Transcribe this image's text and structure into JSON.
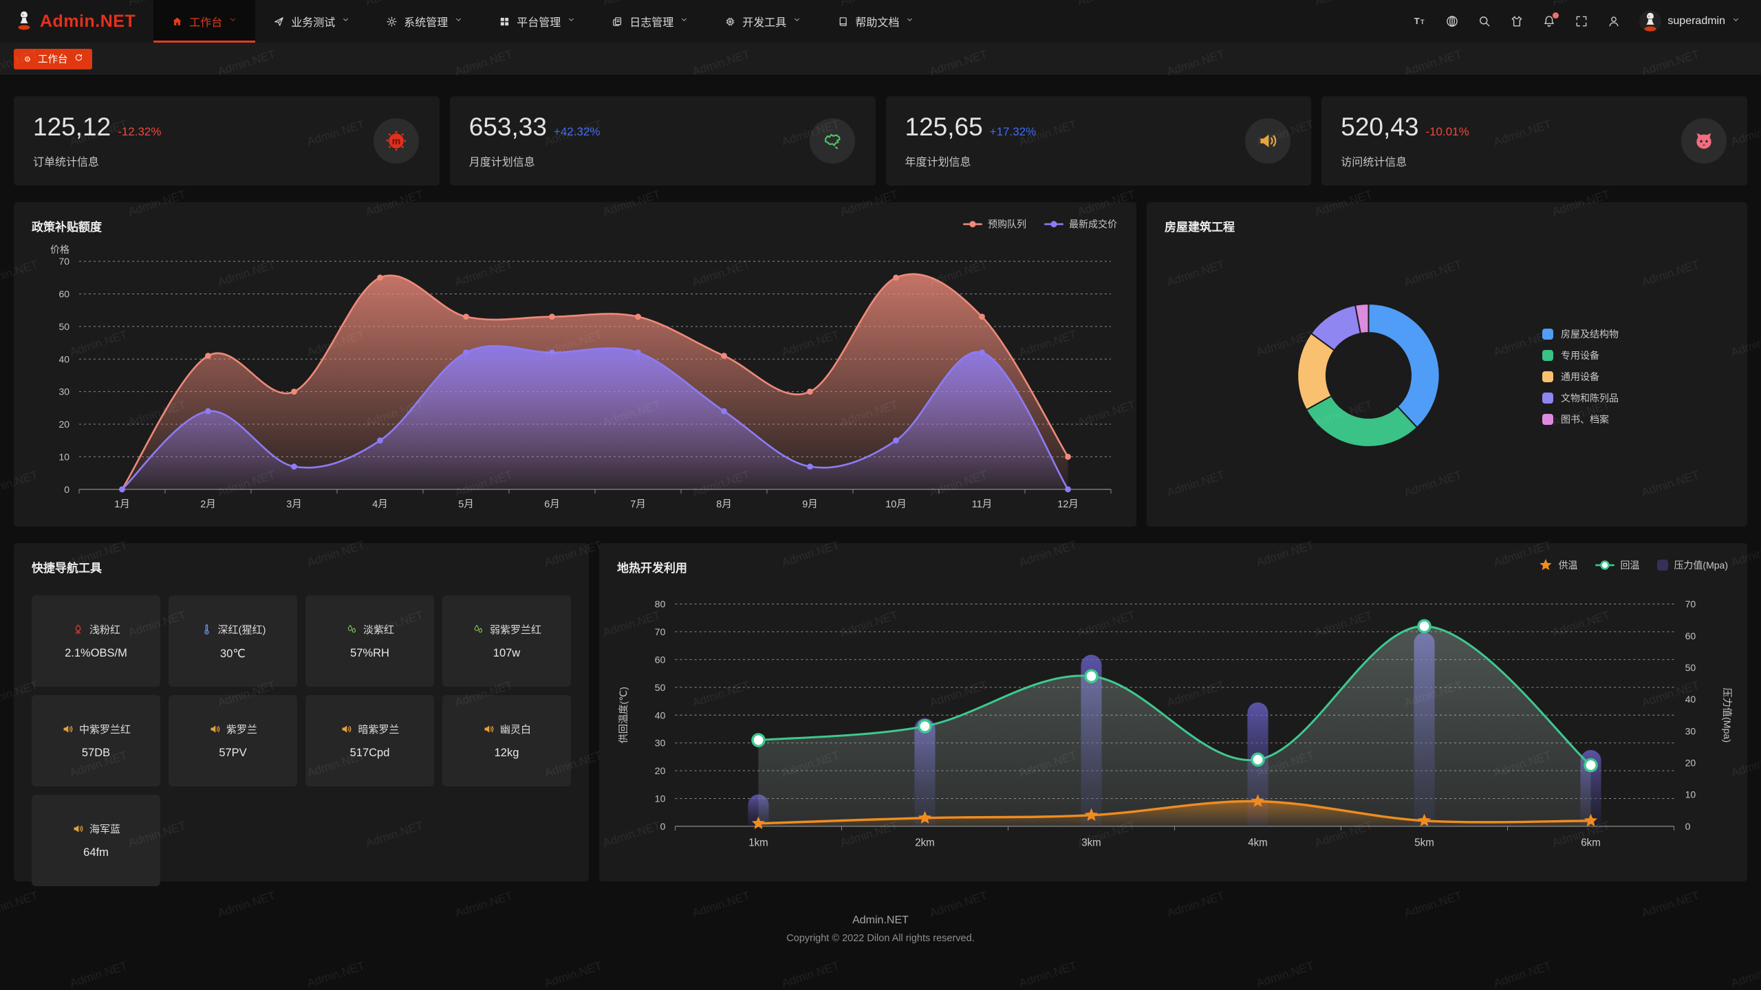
{
  "watermark": {
    "text": "Admin.NET"
  },
  "header": {
    "logo_text": "Admin.NET",
    "menu": [
      {
        "label": "工作台",
        "icon": "home-icon",
        "active": true
      },
      {
        "label": "业务测试",
        "icon": "send-icon",
        "active": false
      },
      {
        "label": "系统管理",
        "icon": "gear-icon",
        "active": false
      },
      {
        "label": "平台管理",
        "icon": "grid-icon",
        "active": false
      },
      {
        "label": "日志管理",
        "icon": "log-icon",
        "active": false
      },
      {
        "label": "开发工具",
        "icon": "chip-icon",
        "active": false
      },
      {
        "label": "帮助文档",
        "icon": "book-icon",
        "active": false
      }
    ],
    "actions": [
      {
        "icon": "font-size-icon",
        "badge": false
      },
      {
        "icon": "language-icon",
        "badge": false
      },
      {
        "icon": "search-icon",
        "badge": false
      },
      {
        "icon": "theme-shirt-icon",
        "badge": false
      },
      {
        "icon": "bell-icon",
        "badge": true
      },
      {
        "icon": "fullscreen-icon",
        "badge": false
      },
      {
        "icon": "user-icon",
        "badge": false
      }
    ],
    "username": "superadmin"
  },
  "tabbar": {
    "active_tab": "工作台"
  },
  "stats": [
    {
      "value": "125,12",
      "delta": "-12.32%",
      "delta_color": "#f0483c",
      "label": "订单统计信息",
      "icon": "splat-icon",
      "icon_color": "#e0301e"
    },
    {
      "value": "653,33",
      "delta": "+42.32%",
      "delta_color": "#3f6af5",
      "label": "月度计划信息",
      "icon": "china-map-icon",
      "icon_color": "#4ec469"
    },
    {
      "value": "125,65",
      "delta": "+17.32%",
      "delta_color": "#3f6af5",
      "label": "年度计划信息",
      "icon": "speaker-icon",
      "icon_color": "#e6a23c"
    },
    {
      "value": "520,43",
      "delta": "-10.01%",
      "delta_color": "#f0483c",
      "label": "访问统计信息",
      "icon": "cat-icon",
      "icon_color": "#f26d7e"
    }
  ],
  "chart_data": [
    {
      "type": "area-line",
      "title": "政策补贴额度",
      "ylabel": "价格",
      "ymin": 0,
      "ymax": 70,
      "ystep": 10,
      "grid": "dashed",
      "legend_position": "top-right",
      "categories": [
        "1月",
        "2月",
        "3月",
        "4月",
        "5月",
        "6月",
        "7月",
        "8月",
        "9月",
        "10月",
        "11月",
        "12月"
      ],
      "series": [
        {
          "name": "预购队列",
          "color": "#ef8a7a",
          "values": [
            0,
            41,
            30,
            65,
            53,
            53,
            53,
            41,
            30,
            65,
            53,
            10
          ]
        },
        {
          "name": "最新成交价",
          "color": "#8d7cf3",
          "values": [
            0,
            24,
            7,
            15,
            42,
            42,
            42,
            24,
            7,
            15,
            42,
            0
          ]
        }
      ]
    },
    {
      "type": "pie",
      "title": "房屋建筑工程",
      "donut": true,
      "legend_position": "right",
      "slices": [
        {
          "name": "房屋及结构物",
          "value": 38,
          "color": "#4f9df7"
        },
        {
          "name": "专用设备",
          "value": 29,
          "color": "#3ac287"
        },
        {
          "name": "通用设备",
          "value": 18,
          "color": "#f9c06f"
        },
        {
          "name": "文物和陈列品",
          "value": 12,
          "color": "#8f86f2"
        },
        {
          "name": "图书、档案",
          "value": 3,
          "color": "#dd8bdf"
        }
      ]
    },
    {
      "type": "bar-line",
      "title": "地热开发利用",
      "grid": "dashed",
      "legend_position": "top-right",
      "categories": [
        "1km",
        "2km",
        "3km",
        "4km",
        "5km",
        "6km"
      ],
      "left_axis": {
        "label": "供回温度(℃)",
        "min": 0,
        "max": 80,
        "step": 10
      },
      "right_axis": {
        "label": "压力值(Mpa)",
        "min": 0,
        "max": 70,
        "step": 10
      },
      "series": [
        {
          "name": "供温",
          "type": "line",
          "marker": "star",
          "axis": "left",
          "color": "#f08c1f",
          "values": [
            1,
            3,
            4,
            9,
            2,
            2
          ]
        },
        {
          "name": "回温",
          "type": "line",
          "marker": "circle",
          "axis": "left",
          "color": "#3ec98e",
          "values": [
            31,
            36,
            54,
            24,
            72,
            22
          ]
        },
        {
          "name": "压力值(Mpa)",
          "type": "bar",
          "marker": "square",
          "axis": "right",
          "color": "#6a63c9",
          "values": [
            10,
            34,
            54,
            39,
            61,
            24
          ]
        }
      ]
    }
  ],
  "shortcuts": {
    "title": "快捷导航工具",
    "items": [
      {
        "name": "浅粉红",
        "value": "2.1%OBS/M",
        "icon": "fire-icon",
        "icon_color": "#e23b2e"
      },
      {
        "name": "深红(猩红)",
        "value": "30℃",
        "icon": "thermometer-icon",
        "icon_color": "#6f9ef7"
      },
      {
        "name": "淡紫红",
        "value": "57%RH",
        "icon": "drops-icon",
        "icon_color": "#7ec050"
      },
      {
        "name": "弱紫罗兰红",
        "value": "107w",
        "icon": "drops-icon",
        "icon_color": "#7ec050"
      },
      {
        "name": "中紫罗兰红",
        "value": "57DB",
        "icon": "speaker-icon",
        "icon_color": "#e6a23c"
      },
      {
        "name": "紫罗兰",
        "value": "57PV",
        "icon": "speaker-icon",
        "icon_color": "#e6a23c"
      },
      {
        "name": "暗紫罗兰",
        "value": "517Cpd",
        "icon": "speaker-icon",
        "icon_color": "#e6a23c"
      },
      {
        "name": "幽灵白",
        "value": "12kg",
        "icon": "speaker-icon",
        "icon_color": "#e6a23c"
      },
      {
        "name": "海军蓝",
        "value": "64fm",
        "icon": "speaker-icon",
        "icon_color": "#e6a23c"
      }
    ]
  },
  "footer": {
    "line1": "Admin.NET",
    "line2": "Copyright © 2022 Dilon All rights reserved."
  }
}
